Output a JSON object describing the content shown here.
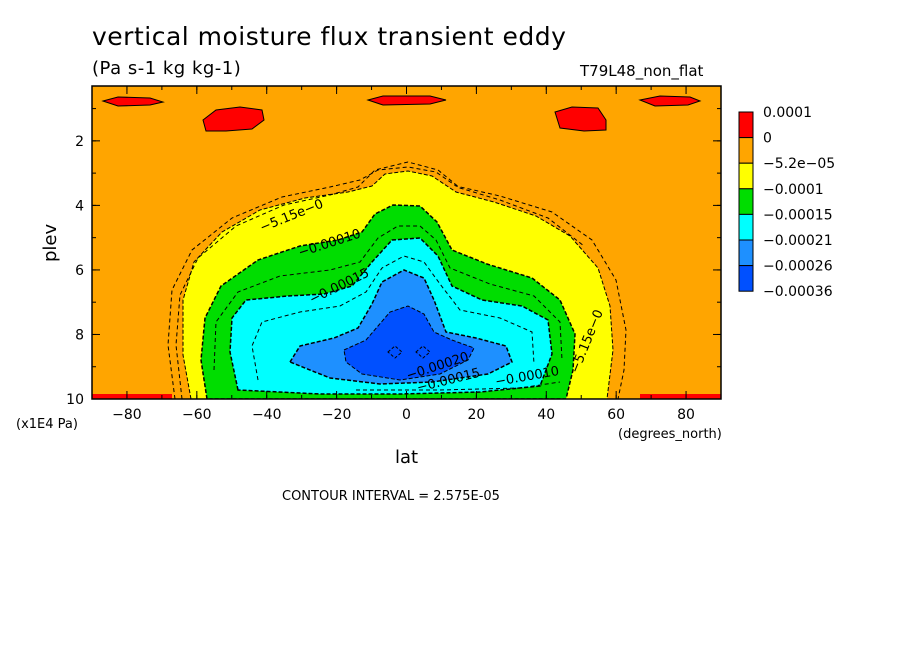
{
  "chart_data": {
    "type": "heatmap",
    "title": "vertical moisture flux transient eddy",
    "subtitle": "(Pa s-1 kg kg-1)",
    "run_label": "T79L48_non_flat",
    "xlabel": "lat",
    "x_units": "(degrees_north)",
    "ylabel": "plev",
    "y_units": "(x1E4 Pa)",
    "xlim": [
      -90,
      90
    ],
    "ylim": [
      10,
      0.3
    ],
    "x_ticks": [
      "-80",
      "-60",
      "-40",
      "-20",
      "0",
      "20",
      "40",
      "60",
      "80"
    ],
    "y_ticks": [
      "2",
      "4",
      "6",
      "8",
      "10"
    ],
    "colorbar": [
      {
        "label": "0.0001",
        "color": "#ff0000"
      },
      {
        "label": "0",
        "color": "#ffa500"
      },
      {
        "label": "−5.2e−05",
        "color": "#ffff00"
      },
      {
        "label": "−0.0001",
        "color": "#00dd00"
      },
      {
        "label": "−0.00015",
        "color": "#00ffff"
      },
      {
        "label": "−0.00021",
        "color": "#1e90ff"
      },
      {
        "label": "−0.00026",
        "color": "#0050ff"
      },
      {
        "label": "−0.00036",
        "color": "#000000"
      }
    ],
    "contour_labels": [
      "−5.15e−0",
      "−0.00010",
      "−0.00015",
      "−0.00020",
      "−0.00015",
      "−0.00010",
      "−5.15e−0"
    ],
    "contour_interval": "CONTOUR INTERVAL = 2.575E-05",
    "grid": false
  }
}
